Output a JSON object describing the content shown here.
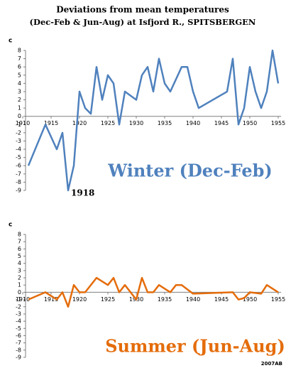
{
  "title_lines": [
    "Deviations from mean temperatures",
    "(Dec-Feb & Jun-Aug) at Isfjord R., SPITSBERGEN"
  ],
  "credit": "2007AB",
  "chart_data": [
    {
      "type": "line",
      "label": "Winter (Dec-Feb)",
      "y_label": "c",
      "annotation": "1918",
      "annotation_x": 1918,
      "annotation_y": -9,
      "color": "#4f81bd",
      "x": [
        1911,
        1914,
        1916,
        1917,
        1918,
        1919,
        1920,
        1921,
        1922,
        1923,
        1924,
        1925,
        1926,
        1927,
        1928,
        1930,
        1931,
        1932,
        1933,
        1934,
        1935,
        1936,
        1938,
        1939,
        1940,
        1941,
        1946,
        1947,
        1948,
        1949,
        1950,
        1951,
        1952,
        1953,
        1954,
        1955
      ],
      "values": [
        -6,
        -1,
        -4,
        -2,
        -9,
        -6,
        3,
        1,
        0.3,
        6,
        2,
        5,
        4,
        -1,
        3,
        2,
        5,
        6,
        3,
        7,
        4,
        3,
        6,
        6,
        3,
        1,
        3,
        7,
        -1,
        1,
        6,
        3,
        1,
        3,
        8,
        4
      ],
      "xlim": [
        1910,
        1955
      ],
      "ylim": [
        -9,
        8
      ],
      "xticks": [
        1910,
        1915,
        1920,
        1925,
        1930,
        1935,
        1940,
        1945,
        1950,
        1955
      ],
      "yticks": [
        8,
        7,
        6,
        5,
        4,
        3,
        2,
        1,
        0,
        -1,
        -2,
        -3,
        -4,
        -5,
        -6,
        -7,
        -8,
        -9
      ]
    },
    {
      "type": "line",
      "label": "Summer (Jun-Aug)",
      "y_label": "c",
      "color": "#e46c0a",
      "x": [
        1911,
        1914,
        1916,
        1917,
        1918,
        1919,
        1920,
        1921,
        1923,
        1925,
        1926,
        1927,
        1928,
        1930,
        1931,
        1932,
        1933,
        1934,
        1936,
        1937,
        1938,
        1940,
        1947,
        1948,
        1949,
        1950,
        1952,
        1953,
        1955
      ],
      "values": [
        -1,
        0,
        -1,
        0,
        -2,
        1,
        0,
        0,
        2,
        1,
        2,
        0,
        1,
        -1,
        2,
        0,
        0,
        1,
        0,
        1,
        1,
        -0.2,
        0,
        -1,
        -0.8,
        0,
        -0.2,
        1,
        0
      ],
      "xlim": [
        1910,
        1955
      ],
      "ylim": [
        -9,
        8
      ],
      "xticks": [
        1910,
        1915,
        1920,
        1925,
        1930,
        1935,
        1940,
        1945,
        1950,
        1955
      ],
      "yticks": [
        8,
        7,
        6,
        5,
        4,
        3,
        2,
        1,
        0,
        -1,
        -2,
        -3,
        -4,
        -5,
        -6,
        -7,
        -8,
        -9
      ]
    }
  ]
}
